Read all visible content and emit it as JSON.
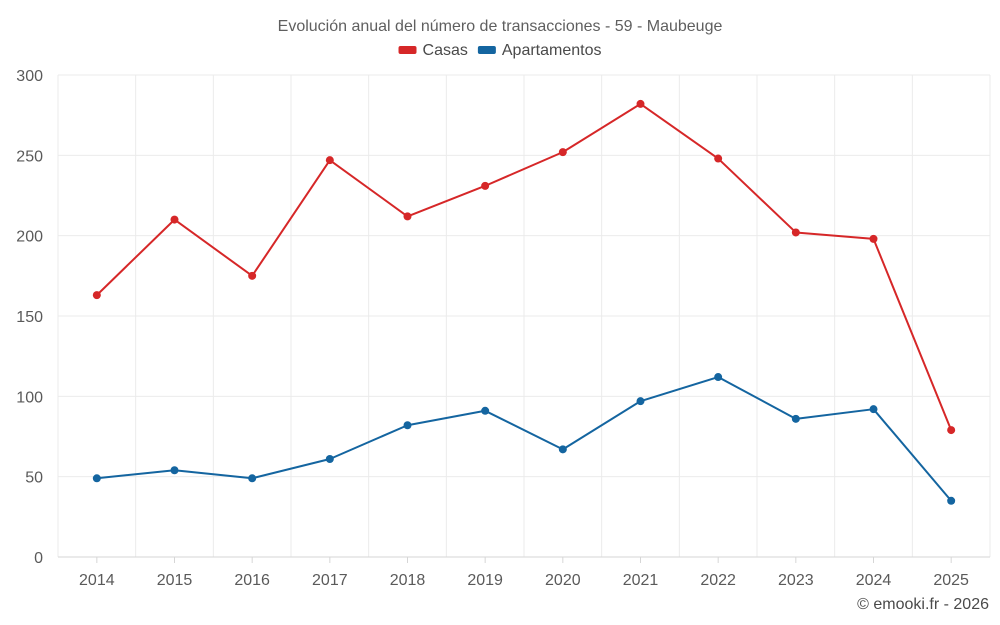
{
  "chart_data": {
    "type": "line",
    "title": "Evolución anual del número de transacciones - 59 - Maubeuge",
    "categories": [
      "2014",
      "2015",
      "2016",
      "2017",
      "2018",
      "2019",
      "2020",
      "2021",
      "2022",
      "2023",
      "2024",
      "2025"
    ],
    "series": [
      {
        "name": "Casas",
        "color": "#d62728",
        "values": [
          163,
          210,
          175,
          247,
          212,
          231,
          252,
          282,
          248,
          202,
          198,
          79
        ]
      },
      {
        "name": "Apartamentos",
        "color": "#1465a0",
        "values": [
          49,
          54,
          49,
          61,
          82,
          91,
          67,
          97,
          112,
          86,
          92,
          35
        ]
      }
    ],
    "ylim": [
      0,
      300
    ],
    "yticks": [
      0,
      50,
      100,
      150,
      200,
      250,
      300
    ],
    "xlabel": "",
    "ylabel": "",
    "grid": true,
    "legend_position": "top-center",
    "credit": "© emooki.fr - 2026"
  }
}
